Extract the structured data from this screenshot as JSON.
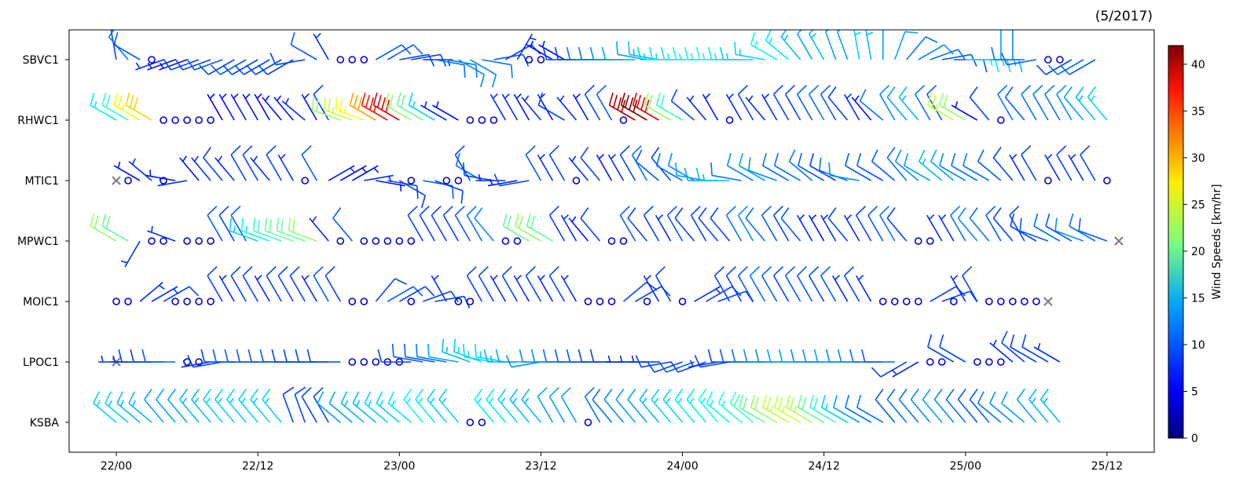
{
  "chart_data": {
    "type": "wind_barbs",
    "title": "(5/2017)",
    "stations": [
      "SBVC1",
      "RHWC1",
      "MTIC1",
      "MPWC1",
      "MOIC1",
      "LPOC1",
      "KSBA"
    ],
    "x_ticks": [
      "22/00",
      "22/12",
      "23/00",
      "23/12",
      "24/00",
      "24/12",
      "25/00",
      "25/12"
    ],
    "x_range_hours": [
      -4,
      88
    ],
    "x_start_label": "22/00",
    "time_step_hours": 1,
    "colorbar": {
      "label": "Wind Speeds [km/hr]",
      "ticks": [
        0,
        5,
        10,
        15,
        20,
        25,
        30,
        35,
        40
      ],
      "range": [
        0,
        42
      ],
      "colormap": "jet"
    },
    "symbols": {
      "calm": "o",
      "missing": "×"
    },
    "series": [
      {
        "station": "SBVC1",
        "speeds": [
          8,
          10,
          9,
          0,
          7,
          6,
          6,
          8,
          8,
          9,
          8,
          9,
          8,
          8,
          8,
          8,
          8,
          9,
          7,
          0,
          0,
          0,
          9,
          9,
          8,
          8,
          7,
          10,
          10,
          11,
          11,
          10,
          9,
          8,
          7,
          0,
          0,
          6,
          6,
          8,
          8,
          10,
          10,
          11,
          12,
          12,
          13,
          14,
          15,
          15,
          16,
          16,
          17,
          15,
          14,
          14,
          16,
          15,
          13,
          12,
          13,
          12,
          12,
          14,
          13,
          12,
          12,
          10,
          11,
          10,
          9,
          9,
          15,
          14,
          13,
          12,
          11,
          10,
          9,
          0,
          0,
          8,
          10,
          9,
          8,
          9,
          8,
          7
        ],
        "dirs": [
          350,
          320,
          300,
          0,
          250,
          250,
          250,
          250,
          250,
          250,
          240,
          240,
          240,
          240,
          240,
          240,
          260,
          300,
          330,
          0,
          0,
          0,
          60,
          60,
          80,
          80,
          90,
          100,
          100,
          120,
          120,
          100,
          80,
          60,
          30,
          0,
          0,
          300,
          300,
          270,
          270,
          270,
          270,
          270,
          270,
          280,
          280,
          270,
          270,
          270,
          270,
          270,
          270,
          270,
          270,
          280,
          300,
          310,
          320,
          330,
          330,
          340,
          340,
          350,
          350,
          360,
          20,
          40,
          60,
          70,
          80,
          90,
          90,
          90,
          90,
          0,
          0,
          270,
          260,
          250,
          240,
          240,
          240,
          240
        ]
      },
      {
        "station": "RHWC1",
        "speeds": [
          15,
          18,
          26,
          28,
          0,
          0,
          0,
          0,
          0,
          5,
          6,
          6,
          6,
          5,
          6,
          6,
          7,
          6,
          8,
          22,
          24,
          26,
          30,
          36,
          38,
          22,
          20,
          14,
          7,
          6,
          0,
          0,
          0,
          7,
          7,
          6,
          7,
          6,
          8,
          7,
          6,
          8,
          9,
          0,
          40,
          42,
          38,
          22,
          18,
          8,
          7,
          6,
          0,
          7,
          8,
          7,
          7,
          8,
          8,
          9,
          10,
          9,
          8,
          7,
          6,
          10,
          11,
          12,
          13,
          10,
          9,
          24,
          22,
          6,
          8,
          0,
          10,
          9,
          10,
          10,
          10,
          11,
          12,
          13,
          14
        ],
        "dirs": [
          300,
          300,
          300,
          300,
          0,
          0,
          0,
          0,
          0,
          330,
          330,
          330,
          330,
          330,
          320,
          320,
          310,
          330,
          330,
          290,
          290,
          290,
          300,
          300,
          300,
          300,
          300,
          300,
          300,
          300,
          0,
          0,
          0,
          330,
          330,
          330,
          320,
          330,
          300,
          320,
          330,
          330,
          330,
          0,
          300,
          300,
          300,
          300,
          300,
          310,
          320,
          330,
          0,
          330,
          330,
          320,
          330,
          330,
          330,
          330,
          330,
          330,
          320,
          330,
          320,
          310,
          330,
          320,
          320,
          330,
          330,
          300,
          300,
          300,
          320,
          0,
          330,
          320,
          330,
          330,
          330,
          330,
          320,
          320,
          320
        ]
      },
      {
        "station": "MTIC1",
        "speeds": [
          -1,
          0,
          6,
          7,
          0,
          6,
          7,
          6,
          7,
          8,
          7,
          8,
          8,
          7,
          8,
          7,
          0,
          9,
          7,
          6,
          6,
          7,
          6,
          8,
          8,
          0,
          9,
          8,
          0,
          0,
          8,
          10,
          8,
          7,
          6,
          8,
          9,
          7,
          8,
          0,
          7,
          8,
          6,
          7,
          8,
          10,
          9,
          8,
          10,
          11,
          12,
          12,
          13,
          10,
          11,
          12,
          11,
          10,
          10,
          10,
          9,
          8,
          10,
          11,
          9,
          9,
          9,
          10,
          11,
          12,
          13,
          12,
          11,
          10,
          10,
          9,
          8,
          7,
          8,
          0,
          7,
          8,
          7,
          8,
          0
        ],
        "dirs": [
          0,
          0,
          300,
          310,
          0,
          280,
          260,
          320,
          320,
          320,
          320,
          330,
          330,
          320,
          330,
          330,
          0,
          330,
          60,
          60,
          60,
          80,
          100,
          100,
          120,
          0,
          100,
          110,
          0,
          0,
          330,
          300,
          280,
          270,
          260,
          260,
          330,
          330,
          330,
          0,
          320,
          320,
          330,
          330,
          330,
          330,
          310,
          320,
          300,
          300,
          280,
          270,
          270,
          280,
          300,
          300,
          290,
          300,
          300,
          310,
          300,
          300,
          290,
          280,
          300,
          300,
          310,
          320,
          310,
          300,
          310,
          310,
          300,
          300,
          300,
          310,
          320,
          330,
          330,
          0,
          330,
          330,
          330,
          330,
          0
        ]
      },
      {
        "station": "MPWC1",
        "speeds": [
          22,
          20,
          7,
          0,
          0,
          7,
          0,
          0,
          0,
          9,
          8,
          9,
          14,
          16,
          18,
          20,
          20,
          22,
          7,
          0,
          9,
          0,
          0,
          0,
          0,
          0,
          8,
          8,
          8,
          8,
          9,
          10,
          11,
          0,
          0,
          20,
          22,
          20,
          8,
          7,
          6,
          8,
          0,
          0,
          9,
          8,
          8,
          7,
          9,
          8,
          8,
          8,
          8,
          10,
          11,
          10,
          9,
          8,
          9,
          7,
          6,
          7,
          8,
          7,
          8,
          9,
          10,
          8,
          0,
          0,
          7,
          7,
          10,
          11,
          10,
          9,
          8,
          8,
          8,
          9,
          10,
          9,
          11,
          10,
          9,
          -1
        ],
        "dirs": [
          300,
          300,
          210,
          0,
          0,
          290,
          0,
          0,
          0,
          330,
          330,
          330,
          290,
          290,
          290,
          290,
          290,
          290,
          320,
          0,
          320,
          0,
          0,
          0,
          0,
          0,
          330,
          330,
          330,
          330,
          330,
          330,
          320,
          0,
          0,
          300,
          300,
          300,
          330,
          330,
          320,
          320,
          0,
          0,
          330,
          320,
          330,
          330,
          330,
          320,
          330,
          320,
          320,
          330,
          330,
          320,
          330,
          330,
          320,
          330,
          330,
          330,
          320,
          330,
          330,
          330,
          330,
          320,
          0,
          0,
          330,
          330,
          330,
          320,
          320,
          330,
          320,
          330,
          300,
          290,
          300,
          300,
          290,
          300,
          290,
          0
        ]
      },
      {
        "station": "MOIC1",
        "speeds": [
          0,
          0,
          7,
          7,
          8,
          0,
          0,
          0,
          0,
          8,
          7,
          8,
          8,
          7,
          8,
          8,
          8,
          7,
          9,
          8,
          0,
          0,
          8,
          9,
          8,
          0,
          8,
          8,
          7,
          0,
          0,
          8,
          8,
          7,
          8,
          7,
          8,
          7,
          8,
          7,
          0,
          0,
          0,
          8,
          8,
          0,
          7,
          8,
          0,
          7,
          8,
          8,
          8,
          8,
          9,
          10,
          9,
          8,
          9,
          9,
          8,
          9,
          7,
          8,
          7,
          0,
          0,
          0,
          0,
          8,
          8,
          0,
          7,
          8,
          0,
          0,
          0,
          0,
          0,
          -1
        ],
        "dirs": [
          0,
          0,
          50,
          60,
          60,
          0,
          0,
          0,
          0,
          330,
          330,
          330,
          330,
          330,
          330,
          330,
          330,
          330,
          330,
          330,
          0,
          0,
          40,
          60,
          60,
          0,
          70,
          80,
          330,
          0,
          0,
          330,
          330,
          330,
          330,
          330,
          330,
          330,
          330,
          330,
          0,
          0,
          0,
          50,
          60,
          0,
          330,
          330,
          0,
          60,
          60,
          70,
          330,
          330,
          330,
          330,
          330,
          330,
          330,
          330,
          330,
          330,
          330,
          330,
          330,
          0,
          0,
          0,
          0,
          60,
          70,
          0,
          330,
          330,
          0,
          0,
          0,
          0,
          0,
          0
        ]
      },
      {
        "station": "LPOC1",
        "speeds": [
          -1,
          7,
          7,
          8,
          8,
          9,
          0,
          0,
          7,
          8,
          8,
          9,
          9,
          9,
          9,
          9,
          8,
          8,
          8,
          8,
          0,
          0,
          0,
          0,
          0,
          8,
          9,
          9,
          10,
          12,
          13,
          14,
          14,
          14,
          13,
          12,
          11,
          11,
          11,
          10,
          9,
          9,
          8,
          8,
          7,
          7,
          7,
          8,
          8,
          9,
          8,
          7,
          8,
          8,
          9,
          10,
          11,
          11,
          12,
          12,
          11,
          11,
          12,
          11,
          11,
          10,
          9,
          8,
          7,
          0,
          0,
          8,
          8,
          0,
          0,
          0,
          7,
          8,
          8,
          8,
          7
        ],
        "dirs": [
          0,
          270,
          270,
          270,
          270,
          270,
          0,
          0,
          260,
          260,
          270,
          270,
          270,
          270,
          270,
          270,
          270,
          270,
          270,
          270,
          0,
          0,
          0,
          0,
          0,
          270,
          280,
          280,
          280,
          280,
          290,
          290,
          280,
          280,
          270,
          270,
          260,
          270,
          270,
          270,
          270,
          270,
          270,
          270,
          270,
          270,
          270,
          260,
          250,
          250,
          250,
          260,
          260,
          270,
          270,
          270,
          270,
          270,
          270,
          270,
          270,
          270,
          270,
          270,
          270,
          270,
          270,
          240,
          240,
          0,
          0,
          300,
          300,
          0,
          0,
          0,
          310,
          310,
          300,
          300,
          300
        ]
      },
      {
        "station": "KSBA",
        "speeds": [
          14,
          14,
          13,
          13,
          12,
          12,
          12,
          13,
          13,
          14,
          14,
          14,
          14,
          14,
          14,
          8,
          8,
          8,
          8,
          12,
          12,
          13,
          13,
          14,
          14,
          15,
          16,
          15,
          14,
          14,
          0,
          0,
          15,
          15,
          14,
          13,
          13,
          12,
          12,
          12,
          0,
          10,
          10,
          11,
          12,
          12,
          13,
          14,
          14,
          15,
          15,
          16,
          16,
          17,
          18,
          20,
          22,
          24,
          24,
          23,
          20,
          18,
          14,
          12,
          10,
          10,
          9,
          10,
          10,
          11,
          12,
          11,
          10,
          9,
          9,
          10,
          11,
          12,
          12,
          13,
          13
        ],
        "dirs": [
          310,
          310,
          310,
          310,
          320,
          320,
          320,
          320,
          320,
          320,
          320,
          320,
          320,
          320,
          320,
          340,
          340,
          330,
          330,
          310,
          310,
          310,
          310,
          310,
          310,
          310,
          320,
          320,
          320,
          320,
          0,
          0,
          320,
          320,
          320,
          320,
          320,
          330,
          330,
          330,
          0,
          330,
          320,
          320,
          320,
          320,
          320,
          320,
          320,
          320,
          320,
          320,
          310,
          310,
          310,
          300,
          300,
          300,
          300,
          300,
          300,
          300,
          300,
          300,
          300,
          300,
          320,
          320,
          320,
          320,
          320,
          320,
          320,
          320,
          320,
          310,
          310,
          310,
          320,
          320,
          320
        ]
      }
    ]
  }
}
